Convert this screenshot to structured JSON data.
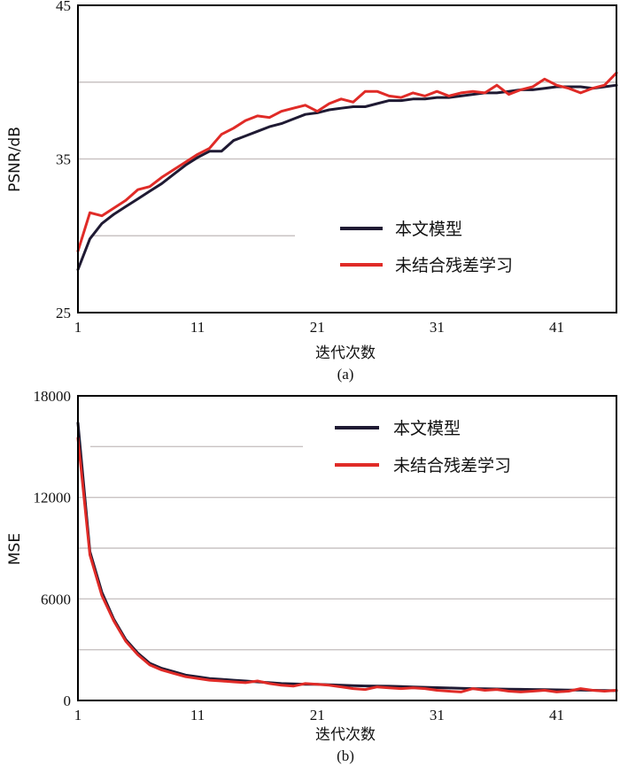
{
  "chart_data": [
    {
      "type": "line",
      "id": "a",
      "panel_label": "(a)",
      "xlabel": "迭代次数",
      "ylabel": "PSNR/dB",
      "xlim": [
        1,
        46
      ],
      "ylim": [
        25,
        45
      ],
      "x_ticks": [
        "1",
        "11",
        "21",
        "31",
        "41"
      ],
      "y_ticks": [
        "25",
        "35",
        "45"
      ],
      "gridlines_y": [
        30,
        35,
        40
      ],
      "partial_gridline_y": 30,
      "legend_position": "center-right",
      "series": [
        {
          "name": "本文模型",
          "color": "#1f1a33",
          "values": [
            27.8,
            29.8,
            30.8,
            31.4,
            31.9,
            32.4,
            32.9,
            33.4,
            34.0,
            34.6,
            35.1,
            35.5,
            35.5,
            36.2,
            36.5,
            36.8,
            37.1,
            37.3,
            37.6,
            37.9,
            38.0,
            38.2,
            38.3,
            38.4,
            38.4,
            38.6,
            38.8,
            38.8,
            38.9,
            38.9,
            39.0,
            39.0,
            39.1,
            39.2,
            39.3,
            39.3,
            39.4,
            39.5,
            39.5,
            39.6,
            39.7,
            39.7,
            39.7,
            39.6,
            39.7,
            39.8
          ]
        },
        {
          "name": "未结合残差学习",
          "color": "#e02b27",
          "values": [
            29.0,
            31.5,
            31.3,
            31.8,
            32.3,
            33.0,
            33.2,
            33.8,
            34.3,
            34.8,
            35.3,
            35.7,
            36.6,
            37.0,
            37.5,
            37.8,
            37.7,
            38.1,
            38.3,
            38.5,
            38.1,
            38.6,
            38.9,
            38.7,
            39.4,
            39.4,
            39.1,
            39.0,
            39.3,
            39.1,
            39.4,
            39.1,
            39.3,
            39.4,
            39.3,
            39.8,
            39.2,
            39.5,
            39.7,
            40.2,
            39.8,
            39.6,
            39.3,
            39.6,
            39.8,
            40.6
          ]
        }
      ]
    },
    {
      "type": "line",
      "id": "b",
      "panel_label": "(b)",
      "xlabel": "迭代次数",
      "ylabel": "MSE",
      "xlim": [
        1,
        46
      ],
      "ylim": [
        0,
        18000
      ],
      "x_ticks": [
        "1",
        "11",
        "21",
        "31",
        "41"
      ],
      "y_ticks": [
        "0",
        "6000",
        "12000",
        "18000"
      ],
      "gridlines_y": [
        3000,
        6000,
        9000,
        12000,
        15000
      ],
      "partial_gridline_y": 15000,
      "legend_position": "top-right",
      "series": [
        {
          "name": "本文模型",
          "color": "#1f1a33",
          "values": [
            16400,
            8800,
            6400,
            4800,
            3600,
            2800,
            2200,
            1900,
            1700,
            1500,
            1400,
            1300,
            1250,
            1200,
            1150,
            1100,
            1050,
            1000,
            980,
            960,
            950,
            930,
            900,
            880,
            860,
            850,
            840,
            820,
            800,
            780,
            760,
            740,
            720,
            700,
            690,
            680,
            670,
            660,
            650,
            640,
            630,
            620,
            610,
            600,
            590,
            580
          ]
        },
        {
          "name": "未结合残差学习",
          "color": "#e02b27",
          "values": [
            15500,
            8600,
            6200,
            4700,
            3500,
            2700,
            2100,
            1800,
            1600,
            1400,
            1300,
            1200,
            1150,
            1100,
            1050,
            1150,
            1000,
            900,
            850,
            1000,
            950,
            900,
            800,
            700,
            650,
            800,
            750,
            700,
            750,
            700,
            600,
            550,
            500,
            700,
            600,
            650,
            550,
            500,
            550,
            600,
            500,
            550,
            700,
            600,
            550,
            600
          ]
        }
      ]
    }
  ]
}
